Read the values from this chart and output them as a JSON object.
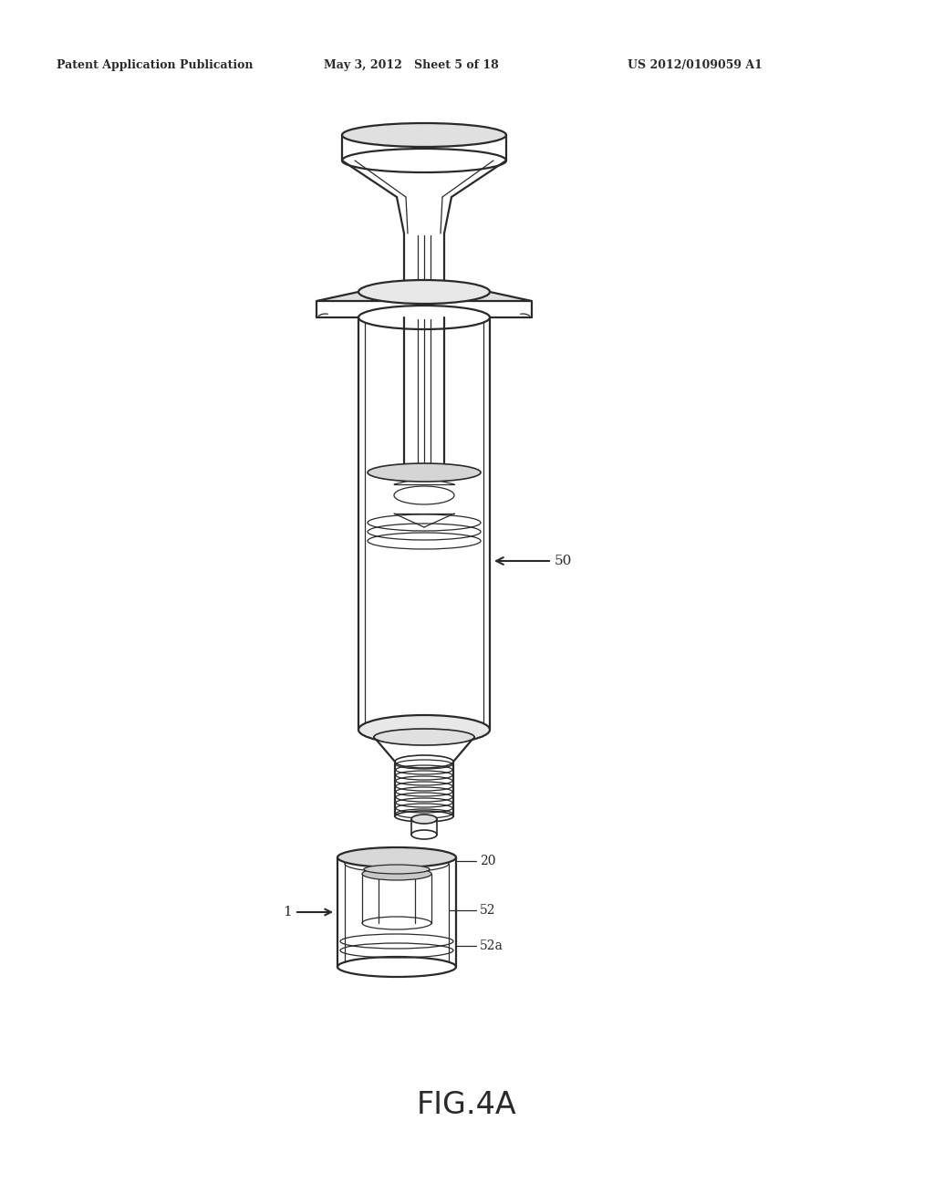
{
  "bg_color": "#ffffff",
  "header_left": "Patent Application Publication",
  "header_mid": "May 3, 2012   Sheet 5 of 18",
  "header_right": "US 2012/0109059 A1",
  "caption": "FIG.4A",
  "label_50": "50",
  "label_1": "1",
  "label_20": "20",
  "label_52": "52",
  "label_52a": "52a",
  "line_color": "#2a2a2a",
  "line_width": 1.6,
  "thin_line": 0.9,
  "med_line": 1.2
}
